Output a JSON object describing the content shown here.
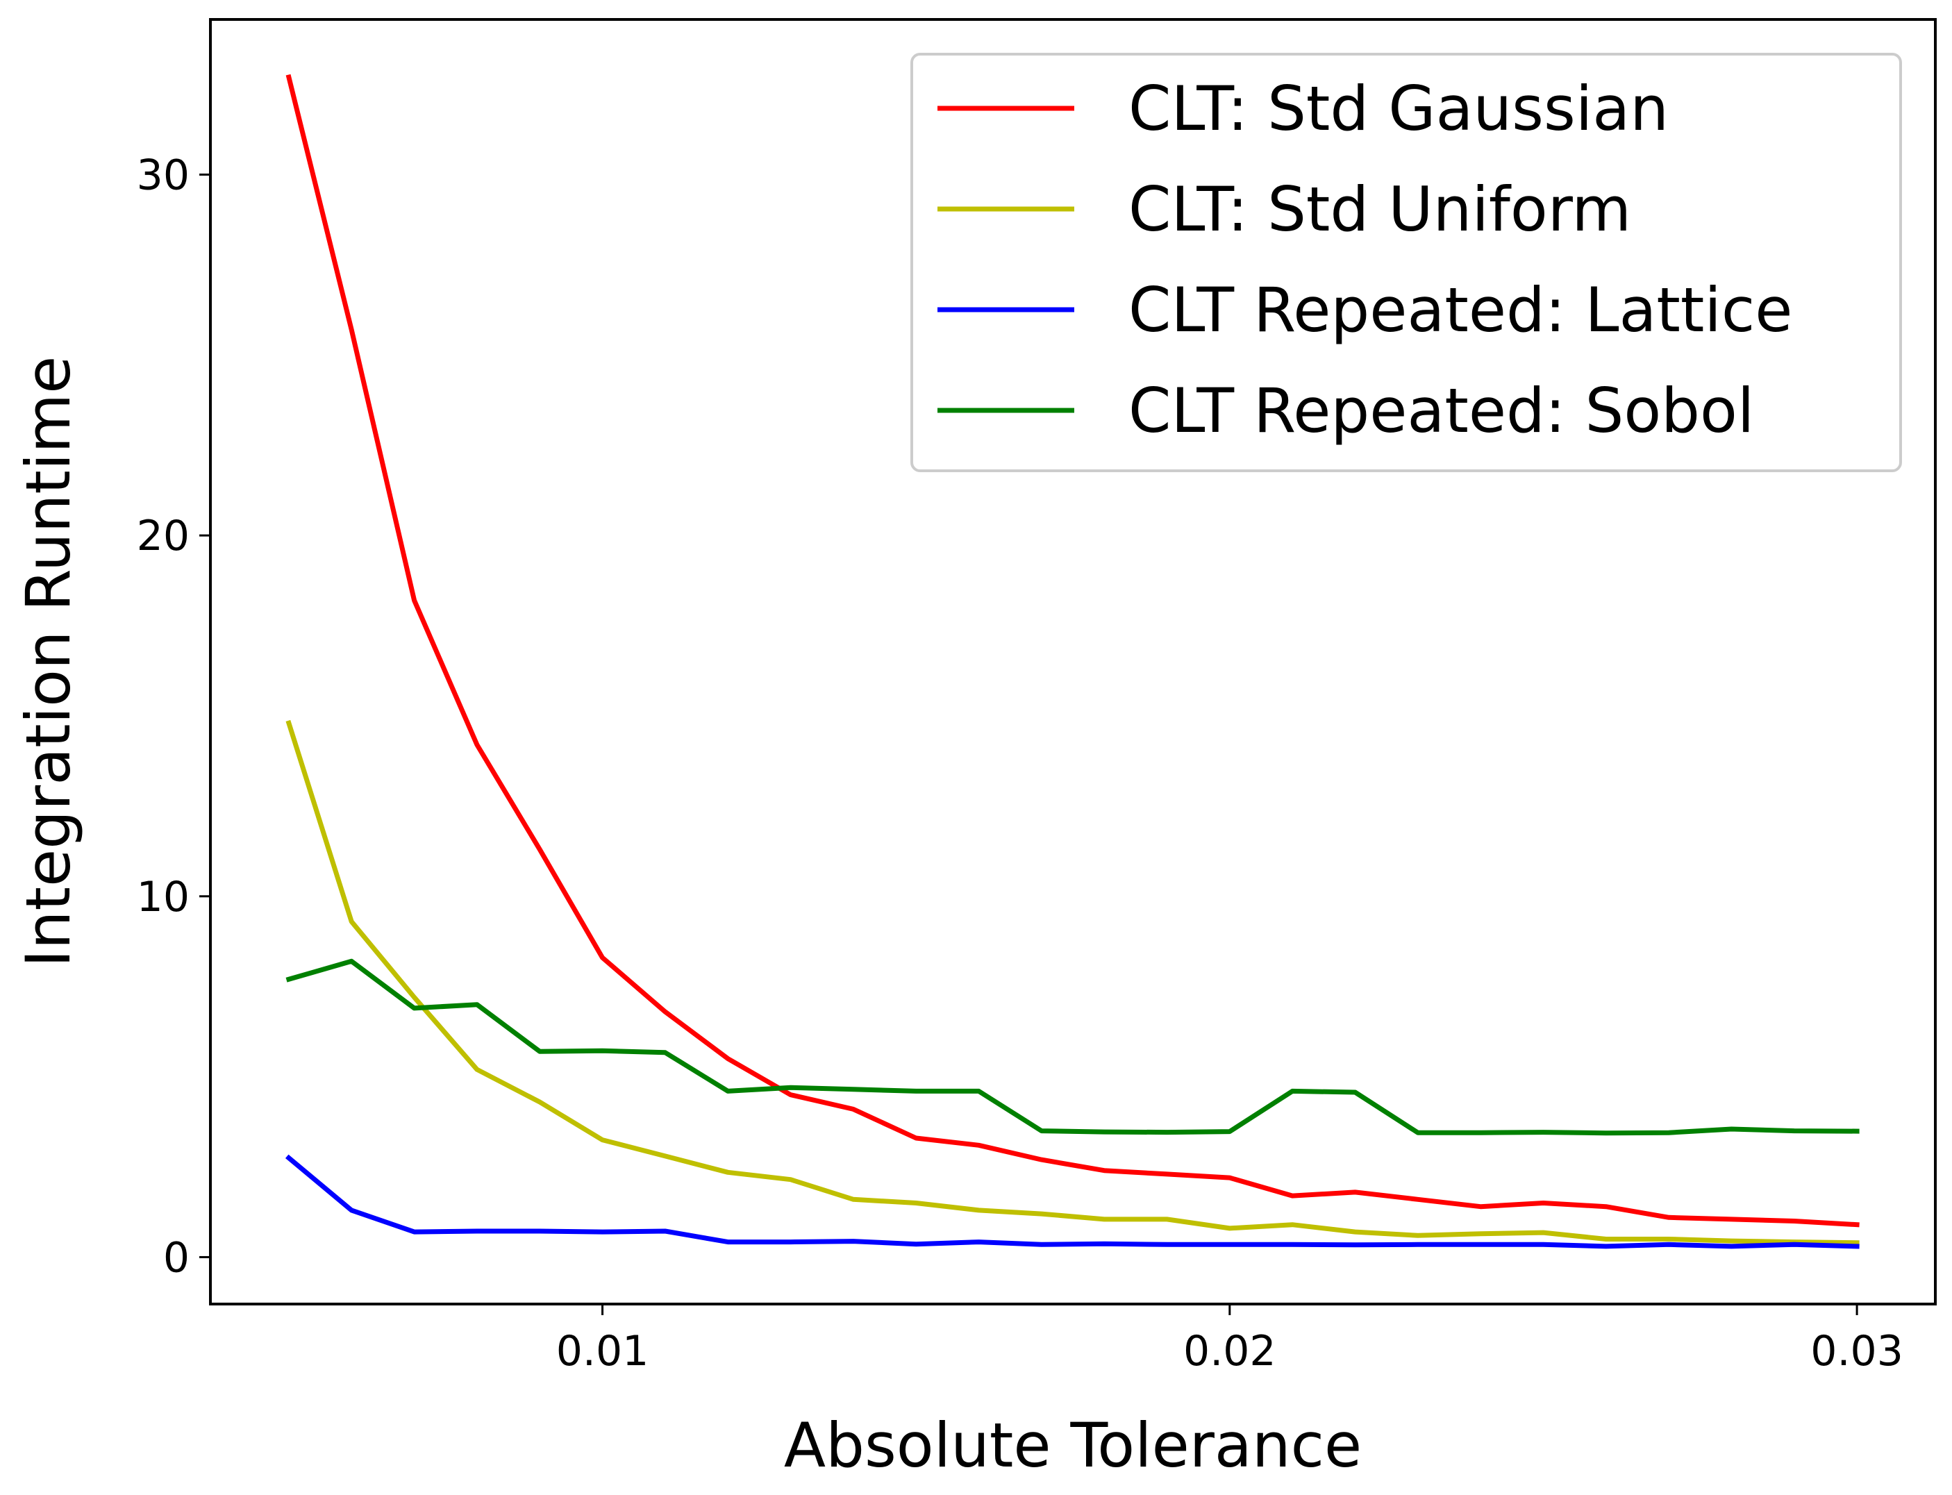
{
  "chart_data": {
    "type": "line",
    "title": "",
    "xlabel": "Absolute Tolerance",
    "ylabel": "Integration Runtime",
    "xlim": [
      0.00375,
      0.03125
    ],
    "ylim": [
      -1.3,
      34.3
    ],
    "xticks": [
      0.01,
      0.02,
      0.03
    ],
    "xtick_labels": [
      "0.01",
      "0.02",
      "0.03"
    ],
    "yticks": [
      0,
      10,
      20,
      30
    ],
    "ytick_labels": [
      "0",
      "10",
      "20",
      "30"
    ],
    "grid": false,
    "legend_position": "top-right",
    "x": [
      0.005,
      0.006,
      0.007,
      0.008,
      0.009,
      0.01,
      0.011,
      0.012,
      0.013,
      0.014,
      0.015,
      0.016,
      0.017,
      0.018,
      0.019,
      0.02,
      0.021,
      0.022,
      0.023,
      0.024,
      0.025,
      0.026,
      0.027,
      0.028,
      0.029,
      0.03
    ],
    "series": [
      {
        "name": "CLT: Std Gaussian",
        "color": "#ff0000",
        "values": [
          32.7,
          25.7,
          18.2,
          14.2,
          11.3,
          8.3,
          6.8,
          5.5,
          4.5,
          4.1,
          3.3,
          3.1,
          2.7,
          2.4,
          2.3,
          2.2,
          1.7,
          1.8,
          1.6,
          1.4,
          1.5,
          1.4,
          1.1,
          1.05,
          1.0,
          0.9
        ]
      },
      {
        "name": "CLT: Std Uniform",
        "color": "#bfbf00",
        "values": [
          14.8,
          9.3,
          7.2,
          5.2,
          4.3,
          3.25,
          2.8,
          2.35,
          2.15,
          1.6,
          1.5,
          1.3,
          1.2,
          1.05,
          1.05,
          0.8,
          0.9,
          0.7,
          0.6,
          0.65,
          0.68,
          0.5,
          0.5,
          0.45,
          0.42,
          0.4
        ]
      },
      {
        "name": "CLT Repeated: Lattice",
        "color": "#0000ff",
        "values": [
          2.75,
          1.3,
          0.7,
          0.72,
          0.72,
          0.7,
          0.72,
          0.42,
          0.42,
          0.44,
          0.36,
          0.42,
          0.35,
          0.37,
          0.35,
          0.35,
          0.35,
          0.34,
          0.35,
          0.35,
          0.35,
          0.3,
          0.35,
          0.3,
          0.35,
          0.3
        ]
      },
      {
        "name": "CLT Repeated: Sobol",
        "color": "#008000",
        "values": [
          7.7,
          8.2,
          6.9,
          7.0,
          5.7,
          5.72,
          5.67,
          4.6,
          4.7,
          4.65,
          4.6,
          4.6,
          3.5,
          3.47,
          3.46,
          3.48,
          4.6,
          4.57,
          3.45,
          3.45,
          3.46,
          3.44,
          3.45,
          3.55,
          3.5,
          3.49
        ]
      }
    ]
  }
}
